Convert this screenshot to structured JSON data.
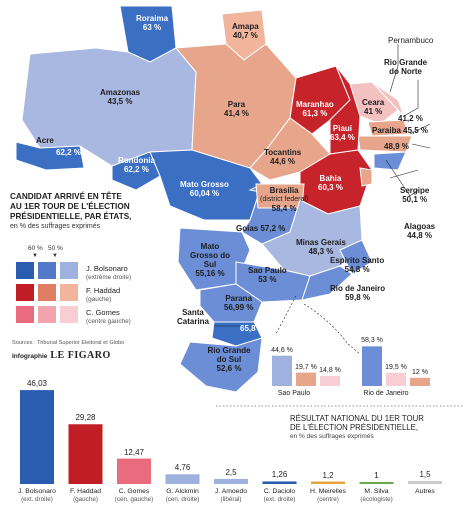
{
  "states": [
    {
      "name": "Roraima",
      "value": "63 %",
      "color": "#3a6fc4"
    },
    {
      "name": "Amapa",
      "value": "40,7 %",
      "color": "#f0b59c"
    },
    {
      "name": "Amazonas",
      "value": "43,5 %",
      "color": "#a8b8e0"
    },
    {
      "name": "Para",
      "value": "41,4 %",
      "color": "#e7a68c"
    },
    {
      "name": "Maranhao",
      "value": "61,3 %",
      "color": "#c7232b"
    },
    {
      "name": "Ceara",
      "value": "41 %",
      "color": "#f4c1c1"
    },
    {
      "name": "Rio Grande do Norte",
      "value": "41,2 %",
      "color": "#f4c1c1"
    },
    {
      "name": "Paraiba",
      "value": "45,5 %",
      "color": "#e7a68c"
    },
    {
      "name": "Pernambuco",
      "value": "48,9 %",
      "color": "#e7a68c"
    },
    {
      "name": "Piaui",
      "value": "63,4 %",
      "color": "#c7232b"
    },
    {
      "name": "Acre",
      "value": "62,2 %",
      "color": "#3a6fc4"
    },
    {
      "name": "Rondonia",
      "value": "62,2 %",
      "color": "#3a6fc4"
    },
    {
      "name": "Tocantins",
      "value": "44,6 %",
      "color": "#e7a68c"
    },
    {
      "name": "Bahia",
      "value": "60,3 %",
      "color": "#c7232b"
    },
    {
      "name": "Mato Grosso",
      "value": "60,04 %",
      "color": "#3a6fc4"
    },
    {
      "name": "Brasilia",
      "sub": "(district federal)",
      "value": "58,4 %",
      "color": "#6b8ed6"
    },
    {
      "name": "Sergipe",
      "value": "50,1 %",
      "color": "#e7a68c"
    },
    {
      "name": "Alagoas",
      "value": "44,8 %",
      "color": "#e7a68c"
    },
    {
      "name": "Goias",
      "value": "57,2 %",
      "color": "#6b8ed6"
    },
    {
      "name": "Minas Gerais",
      "value": "48,3 %",
      "color": "#a8b8e0"
    },
    {
      "name": "Mato Grosso do Sul",
      "value": "55,16 %",
      "color": "#6b8ed6"
    },
    {
      "name": "Sao Paulo",
      "value": "53 %",
      "color": "#6b8ed6"
    },
    {
      "name": "Espirito Santo",
      "value": "54,8 %",
      "color": "#6b8ed6"
    },
    {
      "name": "Parana",
      "value": "56,99 %",
      "color": "#6b8ed6"
    },
    {
      "name": "Rio de Janeiro",
      "value": "59,8 %",
      "color": "#6b8ed6"
    },
    {
      "name": "Santa Catarina",
      "value": "65,8 %",
      "color": "#3a6fc4"
    },
    {
      "name": "Rio Grande do Sul",
      "value": "52,6 %",
      "color": "#6b8ed6"
    }
  ],
  "legend": {
    "title_lines": [
      "CANDIDAT ARRIVÉ EN TÊTE",
      "AU 1ER TOUR DE L'ÉLECTION",
      "PRÉSIDENTIELLE, PAR ÉTATS,"
    ],
    "subtitle": "en % des suffrages exprimés",
    "thresholds": [
      "60 %",
      "50 %"
    ],
    "rows": [
      {
        "name": "J. Bolsonaro",
        "note": "(extrême droite)",
        "colors": [
          "#2a5db0",
          "#5479c9",
          "#9fb2df"
        ]
      },
      {
        "name": "F. Haddad",
        "note": "(gauche)",
        "colors": [
          "#c11d25",
          "#e07e63",
          "#f0b59c"
        ]
      },
      {
        "name": "C. Gomes",
        "note": "(centre gauche)",
        "colors": [
          "#ea6b7e",
          "#f2a3ae",
          "#f8cdd3"
        ]
      }
    ]
  },
  "sources": "Sources : Tribunal Superior Eleitoral et Globo",
  "credit": {
    "label": "Infographie",
    "brand": "LE FIGARO"
  },
  "inset": {
    "cities": [
      {
        "name": "Sao Paulo",
        "values": [
          {
            "v": "44,6 %",
            "pct": 44.6,
            "color": "#9fb2df"
          },
          {
            "v": "19,7 %",
            "pct": 19.7,
            "color": "#e7a68c"
          },
          {
            "v": "14,8 %",
            "pct": 14.8,
            "color": "#f8cdd3"
          }
        ]
      },
      {
        "name": "Rio de Janeiro",
        "values": [
          {
            "v": "58,3 %",
            "pct": 58.3,
            "color": "#6b8ed6"
          },
          {
            "v": "19,5 %",
            "pct": 19.5,
            "color": "#f8cdd3"
          },
          {
            "v": "12 %",
            "pct": 12,
            "color": "#e7a68c"
          }
        ]
      }
    ]
  },
  "national": {
    "title_lines": [
      "RÉSULTAT NATIONAL DU 1ER TOUR",
      "DE L'ÉLECTION PRÉSIDENTIELLE,"
    ],
    "subtitle": "en % des suffrages exprimés"
  },
  "chart_data": {
    "type": "bar",
    "categories": [
      "J. Bolsonaro",
      "F. Haddad",
      "C. Gomes",
      "G. Alckmin",
      "J. Amoedo",
      "C. Daciolo",
      "H. Meirelles",
      "M. Silva",
      "Autres"
    ],
    "notes": [
      "(ext. droite)",
      "(gauche)",
      "(cen. gauche)",
      "(cen. droite)",
      "(libéral)",
      "(ext. droite)",
      "(centre)",
      "(écologiste)",
      ""
    ],
    "values": [
      46.03,
      29.28,
      12.47,
      4.76,
      2.5,
      1.26,
      1.2,
      1,
      1.5
    ],
    "labels": [
      "46,03",
      "29,28",
      "12,47",
      "4,76",
      "2,5",
      "1,26",
      "1,2",
      "1",
      "1,5"
    ],
    "colors": [
      "#2a5db0",
      "#c11d25",
      "#ea6b7e",
      "#9fb2df",
      "#9fb2df",
      "#2a5db0",
      "#e8a33a",
      "#6aa84f",
      "#cccccc"
    ],
    "ylim": [
      0,
      50
    ]
  }
}
